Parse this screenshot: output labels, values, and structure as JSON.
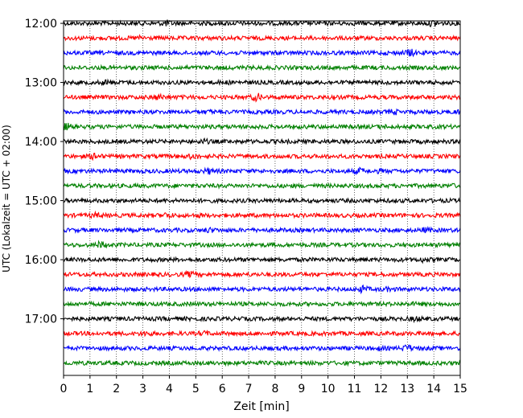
{
  "chart_data": {
    "type": "line",
    "title": "",
    "xlabel": "Zeit  [min]",
    "ylabel": "UTC (Lokalzeit = UTC + 02:00)",
    "xlim": [
      0,
      15
    ],
    "x_ticks": [
      0,
      1,
      2,
      3,
      4,
      5,
      6,
      7,
      8,
      9,
      10,
      11,
      12,
      13,
      14,
      15
    ],
    "ylim_min_of_day": [
      717.5,
      1077.5
    ],
    "y_tick_labels": [
      "12:00",
      "13:00",
      "14:00",
      "15:00",
      "16:00",
      "17:00"
    ],
    "y_tick_values_min": [
      720,
      780,
      840,
      900,
      960,
      1020
    ],
    "grid": {
      "x": "dotted",
      "y": "off"
    },
    "colors": [
      "#000000",
      "#ff0000",
      "#0000ff",
      "#008000"
    ],
    "trace_interval_min": 15,
    "traces": [
      {
        "start": "12:00",
        "events": [
          [
            3.9,
            1.8
          ],
          [
            14.0,
            2.0
          ]
        ]
      },
      {
        "start": "12:15",
        "events": [
          [
            2.9,
            1.5
          ]
        ]
      },
      {
        "start": "12:30",
        "events": [
          [
            13.1,
            2.2
          ]
        ]
      },
      {
        "start": "12:45",
        "events": [
          [
            14.2,
            1.3
          ]
        ]
      },
      {
        "start": "13:00",
        "events": [
          [
            1.6,
            1.6
          ],
          [
            6.1,
            1.2
          ]
        ]
      },
      {
        "start": "13:15",
        "events": [
          [
            3.6,
            1.7
          ],
          [
            7.3,
            2.2
          ]
        ]
      },
      {
        "start": "13:30",
        "events": [
          [
            5.6,
            1.3
          ],
          [
            12.5,
            1.6
          ],
          [
            15.0,
            1.6
          ]
        ]
      },
      {
        "start": "13:45",
        "events": [
          [
            0.1,
            2.0
          ],
          [
            12.1,
            1.3
          ]
        ]
      },
      {
        "start": "14:00",
        "events": [
          [
            5.3,
            1.6
          ]
        ]
      },
      {
        "start": "14:15",
        "events": [
          [
            1.2,
            2.0
          ],
          [
            4.9,
            1.7
          ]
        ]
      },
      {
        "start": "14:30",
        "events": [
          [
            5.5,
            1.8
          ],
          [
            11.2,
            1.8
          ],
          [
            12.0,
            1.4
          ]
        ]
      },
      {
        "start": "14:45",
        "events": [
          [
            14.7,
            1.3
          ]
        ]
      },
      {
        "start": "15:00",
        "events": []
      },
      {
        "start": "15:15",
        "events": [
          [
            1.2,
            1.6
          ],
          [
            3.9,
            1.7
          ],
          [
            5.2,
            1.3
          ]
        ]
      },
      {
        "start": "15:30",
        "events": [
          [
            5.5,
            1.6
          ],
          [
            13.7,
            1.6
          ]
        ]
      },
      {
        "start": "15:45",
        "events": [
          [
            1.4,
            2.0
          ]
        ]
      },
      {
        "start": "16:00",
        "events": [
          [
            13.6,
            1.6
          ]
        ]
      },
      {
        "start": "16:15",
        "events": [
          [
            4.8,
            1.8
          ],
          [
            12.7,
            1.0
          ]
        ]
      },
      {
        "start": "16:30",
        "events": [
          [
            11.3,
            2.0
          ],
          [
            12.3,
            1.4
          ]
        ]
      },
      {
        "start": "16:45",
        "events": [
          [
            13.2,
            1.2
          ]
        ]
      },
      {
        "start": "17:00",
        "events": [
          [
            13.3,
            1.6
          ]
        ]
      },
      {
        "start": "17:15",
        "events": [
          [
            3.1,
            1.6
          ],
          [
            5.3,
            1.5
          ]
        ]
      },
      {
        "start": "17:30",
        "events": [
          [
            11.9,
            1.4
          ],
          [
            13.0,
            2.0
          ]
        ]
      },
      {
        "start": "17:45",
        "events": []
      }
    ]
  }
}
